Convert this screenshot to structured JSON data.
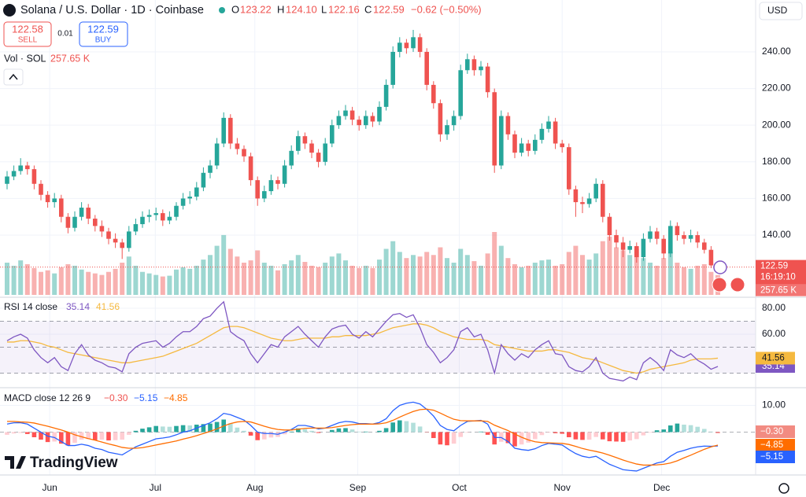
{
  "header": {
    "title": "Solana / U.S. Dollar · 1D · Coinbase",
    "o": "O",
    "o_value": "123.22",
    "h": "H",
    "h_value": "124.10",
    "l": "L",
    "l_value": "122.16",
    "c": "C",
    "c_value": "122.59",
    "change": "−0.62 (−0.50%)",
    "sell_price": "122.58",
    "sell": "SELL",
    "spread": "0.01",
    "buy_price": "122.59",
    "buy": "BUY",
    "currency": "USD",
    "volume_label": "Vol · SOL",
    "volume_value": "257.65 K",
    "countdown": "16:19:10",
    "logo": "TradingView"
  },
  "chart_data": [
    {
      "type": "candlestick",
      "up_color": "#26a69a",
      "down_color": "#ef5350",
      "grid": true,
      "ylim": [
        107.4,
        268.3
      ],
      "yticks": [
        {
          "value": 140,
          "label": "140.00"
        },
        {
          "value": 160,
          "label": "160.00"
        },
        {
          "value": 180,
          "label": "180.00"
        },
        {
          "value": 200,
          "label": "200.00"
        },
        {
          "value": 220,
          "label": "220.00"
        },
        {
          "value": 240,
          "label": "240.00"
        }
      ],
      "xticks": [
        {
          "value": 6.3,
          "label": "Jun"
        },
        {
          "value": 21.9,
          "label": "Jul"
        },
        {
          "value": 36.6,
          "label": "Aug"
        },
        {
          "value": 51.8,
          "label": "Sep"
        },
        {
          "value": 66.8,
          "label": "Oct"
        },
        {
          "value": 82,
          "label": "Nov"
        },
        {
          "value": 96.7,
          "label": "Dec"
        }
      ],
      "open": [
        168,
        172,
        175,
        178,
        176,
        168,
        162,
        158,
        160,
        150,
        144,
        150,
        155,
        149,
        145,
        142,
        138,
        136,
        133,
        142,
        146,
        150,
        151,
        152,
        148,
        150,
        156,
        160,
        161,
        166,
        174,
        178,
        190,
        204,
        190,
        187,
        183,
        170,
        160,
        164,
        170,
        168,
        178,
        186,
        194,
        190,
        185,
        180,
        190,
        200,
        205,
        208,
        203,
        200,
        205,
        202,
        210,
        222,
        240,
        245,
        242,
        248,
        240,
        222,
        212,
        195,
        200,
        205,
        230,
        236,
        230,
        232,
        218,
        178,
        205,
        195,
        185,
        190,
        186,
        192,
        198,
        202,
        190,
        188,
        165,
        158,
        157,
        160,
        168,
        150,
        140,
        136,
        132,
        134,
        128,
        138,
        142,
        138,
        130,
        145,
        140,
        138,
        140,
        136,
        132,
        123.22
      ],
      "high": [
        175,
        178,
        182,
        180,
        178,
        170,
        164,
        163,
        162,
        152,
        153,
        158,
        157,
        151,
        148,
        144,
        141,
        138,
        145,
        149,
        153,
        154,
        155,
        154,
        153,
        158,
        163,
        164,
        169,
        177,
        181,
        193,
        207,
        206,
        193,
        189,
        185,
        172,
        167,
        173,
        172,
        181,
        189,
        197,
        196,
        192,
        187,
        193,
        203,
        208,
        211,
        210,
        205,
        208,
        207,
        213,
        225,
        243,
        248,
        247,
        252,
        250,
        242,
        224,
        214,
        203,
        208,
        233,
        239,
        238,
        235,
        234,
        220,
        208,
        207,
        197,
        193,
        192,
        195,
        201,
        205,
        204,
        192,
        190,
        167,
        161,
        163,
        171,
        170,
        152,
        143,
        139,
        137,
        136,
        141,
        145,
        144,
        140,
        148,
        147,
        142,
        143,
        142,
        138,
        134,
        124.1
      ],
      "low": [
        165,
        170,
        173,
        173,
        165,
        159,
        155,
        155,
        147,
        141,
        142,
        148,
        146,
        142,
        139,
        135,
        133,
        127,
        131,
        140,
        144,
        147,
        148,
        145,
        146,
        148,
        154,
        157,
        159,
        164,
        171,
        176,
        188,
        187,
        184,
        180,
        167,
        156,
        158,
        162,
        165,
        166,
        176,
        184,
        187,
        182,
        177,
        178,
        188,
        198,
        203,
        200,
        197,
        198,
        199,
        200,
        208,
        220,
        237,
        239,
        240,
        237,
        219,
        209,
        191,
        192,
        197,
        203,
        228,
        227,
        227,
        215,
        174,
        176,
        192,
        182,
        183,
        183,
        184,
        190,
        196,
        187,
        185,
        162,
        150,
        152,
        155,
        158,
        147,
        137,
        133,
        128,
        130,
        125,
        126,
        136,
        135,
        127,
        128,
        137,
        135,
        136,
        133,
        130,
        122,
        122.16
      ],
      "close": [
        172,
        175,
        178,
        176,
        168,
        162,
        158,
        160,
        150,
        144,
        150,
        155,
        149,
        145,
        142,
        138,
        136,
        133,
        142,
        146,
        150,
        151,
        152,
        148,
        150,
        156,
        160,
        161,
        166,
        174,
        178,
        190,
        204,
        190,
        187,
        183,
        170,
        160,
        164,
        170,
        168,
        178,
        186,
        194,
        190,
        185,
        180,
        190,
        200,
        205,
        208,
        203,
        200,
        205,
        202,
        210,
        222,
        240,
        245,
        242,
        248,
        240,
        222,
        212,
        195,
        200,
        205,
        230,
        236,
        230,
        232,
        218,
        178,
        205,
        195,
        185,
        190,
        186,
        192,
        198,
        202,
        190,
        188,
        165,
        158,
        157,
        160,
        168,
        150,
        140,
        136,
        132,
        134,
        128,
        138,
        142,
        138,
        130,
        145,
        140,
        138,
        140,
        136,
        132,
        123.5,
        122.59
      ],
      "volume": [
        420,
        380,
        450,
        400,
        350,
        300,
        320,
        280,
        360,
        400,
        380,
        330,
        300,
        280,
        260,
        300,
        340,
        420,
        500,
        380,
        300,
        280,
        260,
        240,
        250,
        330,
        360,
        340,
        380,
        460,
        520,
        640,
        780,
        600,
        500,
        420,
        450,
        580,
        420,
        380,
        320,
        400,
        450,
        520,
        430,
        380,
        360,
        420,
        500,
        540,
        450,
        380,
        350,
        380,
        350,
        460,
        600,
        700,
        560,
        480,
        520,
        500,
        560,
        520,
        620,
        480,
        420,
        600,
        520,
        440,
        380,
        540,
        820,
        640,
        480,
        400,
        360,
        380,
        420,
        450,
        460,
        380,
        400,
        560,
        640,
        520,
        460,
        540,
        700,
        760,
        620,
        580,
        520,
        600,
        480,
        420,
        380,
        480,
        560,
        420,
        360,
        340,
        380,
        400,
        300,
        257.65
      ]
    },
    {
      "type": "line",
      "title": "RSI 14 close",
      "ylim": [
        20.6,
        87.3
      ],
      "yticks": [
        {
          "value": 60,
          "label": "60.00"
        },
        {
          "value": 80,
          "label": "80.00"
        }
      ],
      "bands": [
        30,
        50,
        70
      ],
      "series": [
        {
          "color": "#7e57c2",
          "values": [
            55,
            58,
            60,
            57,
            48,
            42,
            38,
            42,
            35,
            32,
            45,
            52,
            44,
            40,
            38,
            35,
            34,
            31,
            45,
            50,
            53,
            54,
            55,
            50,
            53,
            58,
            62,
            62,
            66,
            72,
            74,
            80,
            85,
            62,
            58,
            55,
            45,
            38,
            45,
            52,
            50,
            58,
            62,
            66,
            60,
            55,
            50,
            58,
            64,
            66,
            67,
            60,
            57,
            62,
            58,
            64,
            70,
            75,
            76,
            73,
            75,
            65,
            52,
            46,
            38,
            42,
            48,
            62,
            65,
            58,
            60,
            48,
            30,
            52,
            45,
            40,
            45,
            42,
            48,
            52,
            55,
            45,
            44,
            35,
            32,
            31,
            35,
            42,
            30,
            26,
            25,
            24,
            27,
            25,
            38,
            42,
            38,
            32,
            48,
            44,
            42,
            45,
            40,
            37,
            33,
            35.14
          ]
        },
        {
          "color": "#f5b93f",
          "values": [
            54,
            54,
            55,
            55,
            54,
            53,
            51,
            50,
            48,
            46,
            45,
            44,
            43,
            42,
            41,
            40,
            39,
            38,
            38,
            39,
            40,
            41,
            42,
            43,
            45,
            47,
            49,
            51,
            53,
            56,
            59,
            62,
            65,
            66,
            66,
            65,
            63,
            61,
            59,
            57,
            56,
            55,
            55,
            56,
            57,
            57,
            57,
            57,
            58,
            58,
            59,
            59,
            59,
            59,
            60,
            61,
            63,
            65,
            66,
            67,
            68,
            68,
            67,
            65,
            62,
            60,
            58,
            57,
            56,
            56,
            56,
            55,
            52,
            51,
            50,
            49,
            48,
            47,
            47,
            47,
            48,
            48,
            47,
            46,
            44,
            42,
            41,
            40,
            38,
            36,
            34,
            32,
            31,
            30,
            31,
            33,
            34,
            35,
            36,
            37,
            38,
            40,
            41,
            41,
            41,
            41.56
          ]
        }
      ]
    },
    {
      "type": "macd",
      "title": "MACD close 12 26 9",
      "ylim": [
        -15.4,
        16
      ],
      "yticks": [
        {
          "value": 10,
          "label": "10.00"
        }
      ],
      "histogram": {
        "last_label": "−0.30",
        "values": [
          -1,
          -0.5,
          -0.3,
          -0.7,
          -1.9,
          -2.8,
          -3.7,
          -3.5,
          -4.3,
          -5,
          -4,
          -2.8,
          -2.6,
          -3,
          -2.8,
          -3.1,
          -3,
          -2.8,
          -1,
          0.5,
          1.3,
          1.8,
          2.3,
          2.1,
          2,
          2.3,
          2.6,
          2.5,
          2.8,
          3,
          3.2,
          3.8,
          4.7,
          3.3,
          1.7,
          0.5,
          -1.3,
          -3,
          -2.7,
          -2,
          -1.8,
          -0.8,
          0.2,
          1.4,
          1.1,
          0.5,
          -0.3,
          0,
          0.8,
          1.4,
          1.5,
          1,
          0.2,
          0.2,
          0,
          0.5,
          1.5,
          3.6,
          4.4,
          4.1,
          3.5,
          2.1,
          -0.1,
          -2.2,
          -4.6,
          -4.9,
          -4.3,
          -1.8,
          -0.2,
          0,
          0.2,
          -1,
          -4.6,
          -3.6,
          -4.1,
          -5.3,
          -4.6,
          -3.9,
          -2.6,
          -1.1,
          -0.2,
          -0.4,
          -0.6,
          -1.9,
          -2.7,
          -2.9,
          -2.8,
          -1.8,
          -2.7,
          -3.4,
          -3.5,
          -3.6,
          -3.1,
          -2.6,
          -1.2,
          -0.2,
          0.7,
          1,
          2.5,
          3.2,
          2.8,
          2.6,
          2,
          1.2,
          0.2,
          -0.3
        ]
      },
      "series": [
        {
          "color": "#2962ff",
          "last_label": "−5.15",
          "values": [
            3,
            3.5,
            3.5,
            3,
            1.5,
            0,
            -1.5,
            -2,
            -3.5,
            -5,
            -5,
            -4.5,
            -5,
            -6,
            -6.5,
            -7.5,
            -8,
            -8.5,
            -7,
            -5.5,
            -4.5,
            -3.5,
            -2.5,
            -2.2,
            -1.8,
            -1,
            0,
            0.5,
            1.5,
            2.5,
            3.5,
            5,
            7,
            6.5,
            5.5,
            4.5,
            2.5,
            0,
            -0.5,
            -0.5,
            -0.8,
            0,
            1,
            2.5,
            2.5,
            2,
            1.2,
            1.5,
            2.5,
            3.5,
            4,
            3.8,
            3.2,
            3.2,
            3,
            3.6,
            5,
            8,
            10,
            10.8,
            11.2,
            10.5,
            8.5,
            6,
            2.5,
            1,
            0.5,
            2.5,
            4,
            4.2,
            4.4,
            3,
            -2,
            -2,
            -3.5,
            -6,
            -6.5,
            -6.8,
            -6.2,
            -5,
            -4.2,
            -4.5,
            -4.8,
            -6.5,
            -8,
            -9,
            -9.5,
            -9,
            -10.5,
            -12,
            -13,
            -14,
            -14.3,
            -14.5,
            -13.5,
            -12.5,
            -11.5,
            -11,
            -9,
            -7.5,
            -6.8,
            -6,
            -5.5,
            -5.2,
            -5.3,
            -5.15
          ]
        },
        {
          "color": "#ff6d00",
          "last_label": "−4.85",
          "values": [
            4,
            4,
            3.8,
            3.7,
            3.4,
            2.8,
            2.2,
            1.5,
            0.8,
            0,
            -1,
            -1.7,
            -2.4,
            -3,
            -3.7,
            -4.4,
            -5,
            -5.7,
            -6,
            -6,
            -5.8,
            -5.3,
            -4.8,
            -4.3,
            -3.8,
            -3.3,
            -2.6,
            -2,
            -1.3,
            -0.5,
            0.3,
            1.2,
            2.3,
            3.2,
            3.8,
            4,
            3.8,
            3,
            2.2,
            1.5,
            1,
            0.8,
            0.8,
            1.1,
            1.4,
            1.5,
            1.5,
            1.5,
            1.7,
            2.1,
            2.5,
            2.8,
            3,
            3,
            3,
            3.1,
            3.5,
            4.4,
            5.6,
            6.7,
            7.7,
            8.4,
            8.6,
            8.2,
            7.1,
            5.9,
            4.8,
            4.3,
            4.2,
            4.2,
            4.2,
            4,
            2.6,
            1.6,
            0.6,
            -0.7,
            -1.9,
            -2.9,
            -3.6,
            -3.9,
            -4,
            -4.1,
            -4.2,
            -4.6,
            -5.3,
            -6.1,
            -6.7,
            -7.2,
            -7.8,
            -8.6,
            -9.5,
            -10.4,
            -11.2,
            -11.9,
            -12.3,
            -12.3,
            -12.2,
            -12,
            -11.5,
            -10.7,
            -9.6,
            -8.6,
            -7.5,
            -6.4,
            -5.5,
            -4.85
          ]
        }
      ]
    }
  ]
}
